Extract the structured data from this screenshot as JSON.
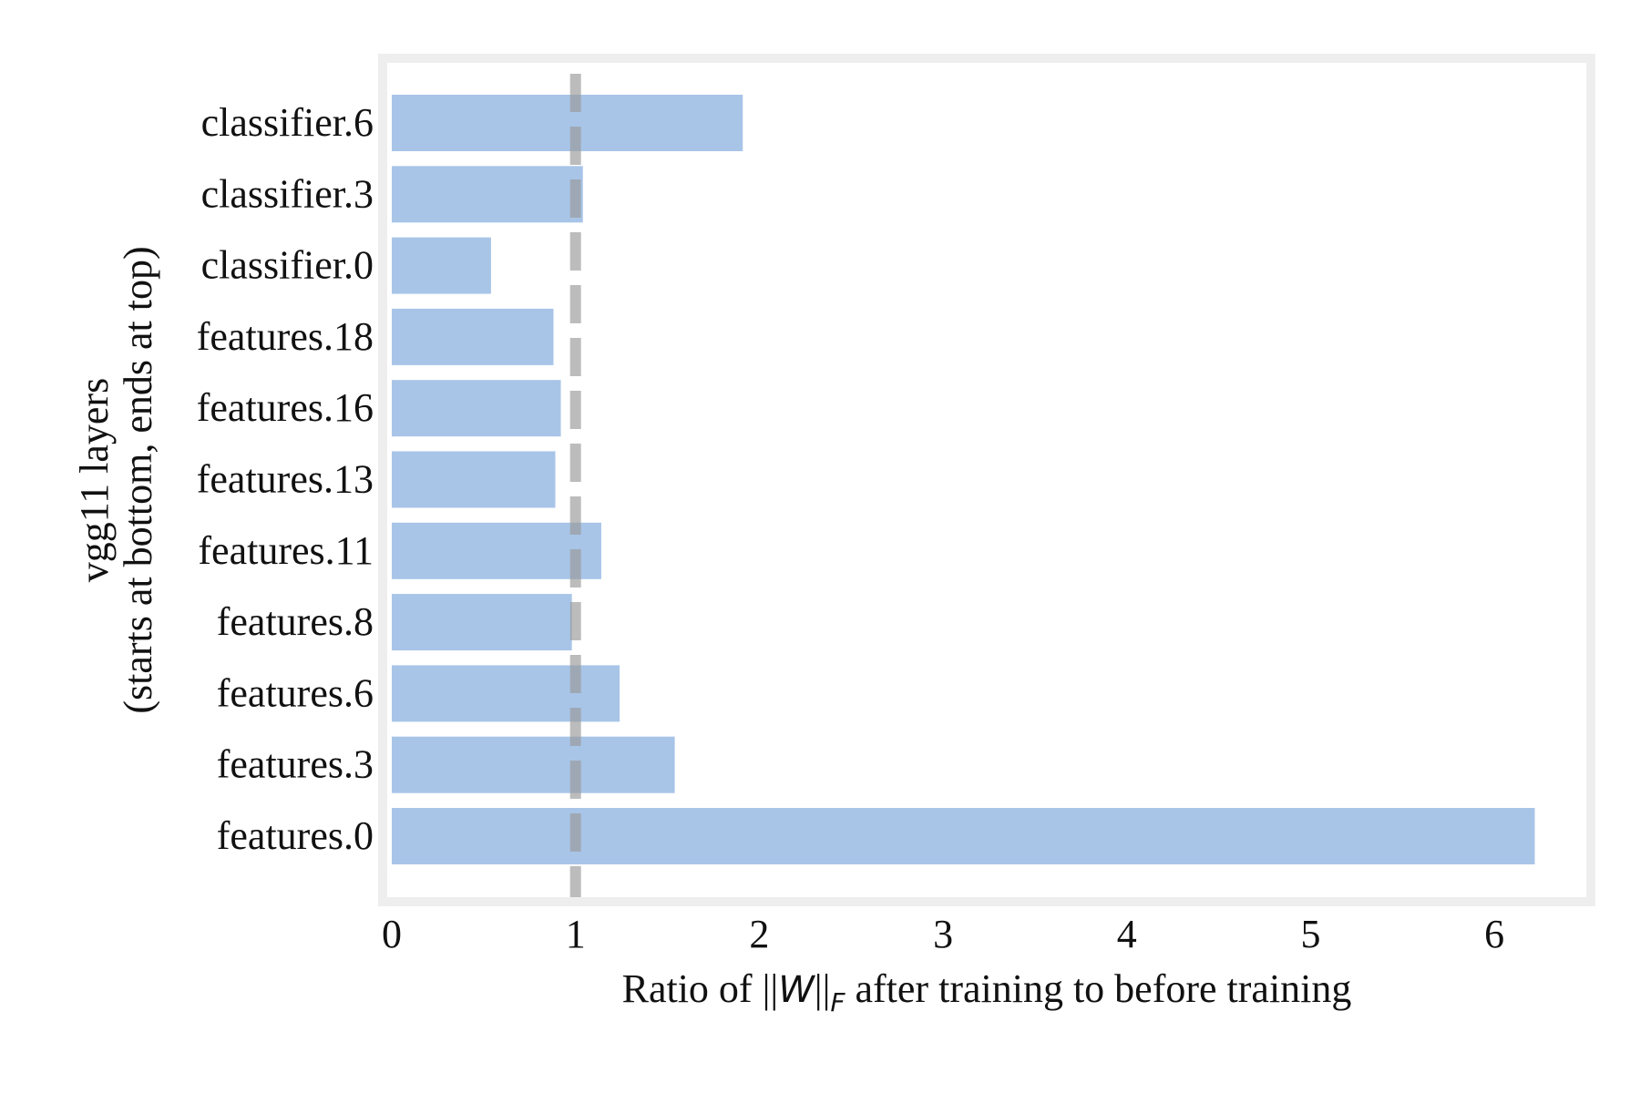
{
  "chart_data": {
    "type": "bar",
    "orientation": "horizontal",
    "categories": [
      "features.0",
      "features.3",
      "features.6",
      "features.8",
      "features.11",
      "features.13",
      "features.16",
      "features.18",
      "classifier.0",
      "classifier.3",
      "classifier.6"
    ],
    "values": [
      6.22,
      1.54,
      1.24,
      0.98,
      1.14,
      0.89,
      0.92,
      0.88,
      0.54,
      1.04,
      1.91
    ],
    "xlim": [
      0,
      6.5
    ],
    "xticks": [
      0,
      1,
      2,
      3,
      4,
      5,
      6
    ],
    "xlabel_parts": {
      "prefix": "Ratio of ",
      "norm_open": "||",
      "norm_var": "W",
      "norm_close": "||",
      "norm_sub": "F",
      "suffix": " after training to before training"
    },
    "ylabel_lines": [
      "vgg11 layers",
      "(starts at bottom, ends at top)"
    ],
    "reference_line": {
      "x": 1,
      "style": "dashed"
    },
    "grid": false,
    "bar_color": "#a8c5e8",
    "reference_line_color": "#999999",
    "frame_color": "#eeeeee"
  }
}
